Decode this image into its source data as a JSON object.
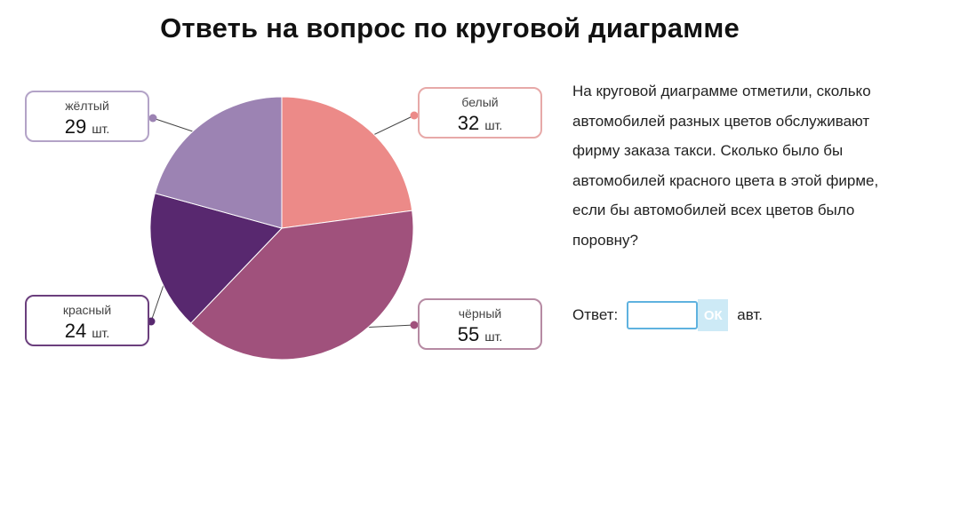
{
  "title": "Ответь на вопрос по круговой диаграмме",
  "question": "На круговой диаграмме отметили, сколько автомобилей разных цветов обслуживают фирму заказа такси. Сколько было бы автомобилей красного цвета в этой фирме, если бы автомобилей всех цветов было поровну?",
  "answer": {
    "label": "Ответ:",
    "value": "",
    "button_label": "ОК",
    "unit": "авт."
  },
  "chart_data": {
    "type": "pie",
    "unit": "шт.",
    "slices": [
      {
        "label": "белый",
        "value": 32,
        "color": "#ec8a88",
        "border": "#e7a9a8"
      },
      {
        "label": "чёрный",
        "value": 55,
        "color": "#a0517c",
        "border": "#b68aa3"
      },
      {
        "label": "красный",
        "value": 24,
        "color": "#58286f",
        "border": "#6b3f7d"
      },
      {
        "label": "жёлтый",
        "value": 29,
        "color": "#9c83b3",
        "border": "#b3a3c7"
      }
    ]
  }
}
